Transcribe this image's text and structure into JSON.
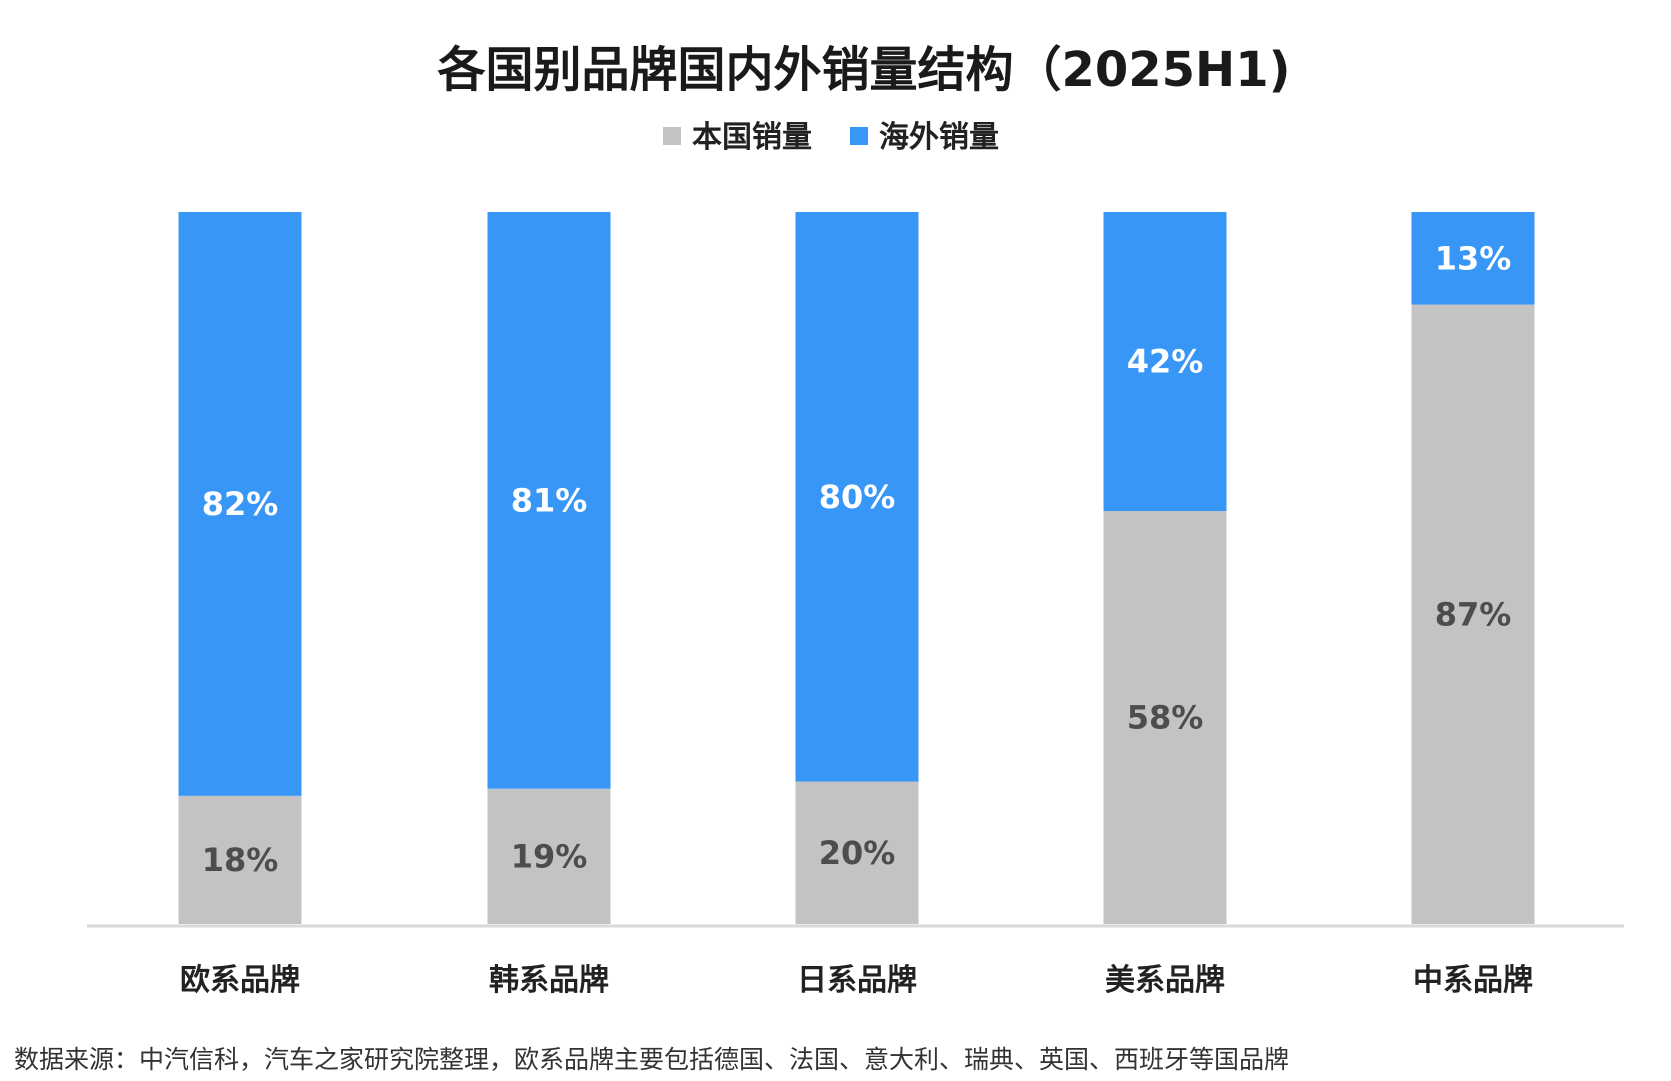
{
  "chart_data": {
    "type": "bar",
    "stacked": true,
    "percent_stacked": true,
    "title": "各国别品牌国内外销量结构（2025H1)",
    "categories": [
      "欧系品牌",
      "韩系品牌",
      "日系品牌",
      "美系品牌",
      "中系品牌"
    ],
    "series": [
      {
        "name": "本国销量",
        "values": [
          18,
          19,
          20,
          58,
          87
        ],
        "color": "#c3c3c3",
        "label_color": "#4d4d4d"
      },
      {
        "name": "海外销量",
        "values": [
          82,
          81,
          80,
          42,
          13
        ],
        "color": "#3896f7",
        "label_color": "#ffffff"
      }
    ],
    "value_suffix": "%",
    "ylim": [
      0,
      100
    ],
    "legend_position": "top",
    "grid": false
  },
  "source_note": "数据来源：中汽信科，汽车之家研究院整理，欧系品牌主要包括德国、法国、意大利、瑞典、英国、西班牙等国品牌",
  "colors": {
    "domestic": "#c3c3c3",
    "overseas": "#3896f7",
    "axis_line": "#d9d9d9"
  }
}
